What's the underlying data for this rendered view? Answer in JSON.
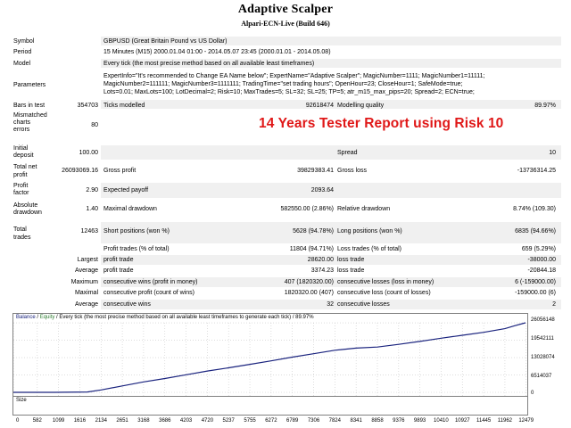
{
  "header": {
    "title": "Adaptive Scalper",
    "subtitle": "Alpari-ECN-Live (Build 646)"
  },
  "overlay_text": "14 Years Tester Report using Risk 10",
  "colors": {
    "overlay": "#e01818",
    "balance_line": "#1a237e",
    "equity": "#2e7d32",
    "shade": "#f0f0f0"
  },
  "report": {
    "symbol": {
      "label": "Symbol",
      "value": "GBPUSD (Great Britain Pound vs US Dollar)"
    },
    "period": {
      "label": "Period",
      "value": "15 Minutes (M15) 2000.01.04 01:00 - 2014.05.07 23:45 (2000.01.01 - 2014.05.08)"
    },
    "model": {
      "label": "Model",
      "value": "Every tick (the most precise method based on all available least timeframes)"
    },
    "parameters": {
      "label": "Parameters",
      "lines": [
        "ExpertInfo=\"It's recommended to Change EA Name below\"; ExpertName=\"Adaptive Scalper\"; MagicNumber=1111; MagicNumber1=11111;",
        "MagicNumber2=111111; MagicNumber3=1111111; TradingTime=\"set trading hours\"; OpenHour=23; CloseHour=1; SafeMode=true;",
        "Lots=0.01; MaxLots=100; LotDecimal=2; Risk=10; MaxTrades=5; SL=32; SL=25; TP=5; atr_m15_max_pips=20; Spread=2; ECN=true;"
      ]
    },
    "bars": {
      "label": "Bars in test",
      "value": "354703"
    },
    "ticks": {
      "label": "Ticks modelled",
      "value": "92618474"
    },
    "quality": {
      "label": "Modelling quality",
      "value": "89.97%"
    },
    "mismatched": {
      "label_lines": [
        "Mismatched",
        "charts",
        "errors"
      ],
      "value": "80"
    },
    "deposit": {
      "label_lines": [
        "Initial",
        "deposit"
      ],
      "value": "100.00"
    },
    "spread": {
      "label": "Spread",
      "value": "10"
    },
    "net_profit": {
      "label_lines": [
        "Total net",
        "profit"
      ],
      "value": "26093069.16"
    },
    "gross_profit": {
      "label": "Gross profit",
      "value": "39829383.41"
    },
    "gross_loss": {
      "label": "Gross loss",
      "value": "-13736314.25"
    },
    "profit_factor": {
      "label_lines": [
        "Profit",
        "factor"
      ],
      "value": "2.90"
    },
    "expected_payoff": {
      "label": "Expected payoff",
      "value": "2093.64"
    },
    "abs_drawdown": {
      "label_lines": [
        "Absolute",
        "drawdown"
      ],
      "value": "1.40"
    },
    "max_drawdown": {
      "label": "Maximal drawdown",
      "value": "582550.00 (2.86%)"
    },
    "rel_drawdown": {
      "label": "Relative drawdown",
      "value": "8.74% (109.30)"
    },
    "total_trades": {
      "label_lines": [
        "Total",
        "trades"
      ],
      "value": "12463"
    },
    "short_pos": {
      "label": "Short positions (won %)",
      "value": "5628 (94.78%)"
    },
    "long_pos": {
      "label": "Long positions (won %)",
      "value": "6835 (94.66%)"
    },
    "profit_trades": {
      "label": "Profit trades (% of total)",
      "value": "11804 (94.71%)"
    },
    "loss_trades": {
      "label": "Loss trades (% of total)",
      "value": "659 (5.29%)"
    },
    "largest": {
      "prefix": "Largest",
      "p_label": "profit trade",
      "p_value": "28620.00",
      "l_label": "loss trade",
      "l_value": "-38000.00"
    },
    "average": {
      "prefix": "Average",
      "p_label": "profit trade",
      "p_value": "3374.23",
      "l_label": "loss trade",
      "l_value": "-20844.18"
    },
    "maximum": {
      "prefix": "Maximum",
      "p_label": "consecutive wins (profit in money)",
      "p_value": "407 (1820320.00)",
      "l_label": "consecutive losses (loss in money)",
      "l_value": "6 (-159000.00)"
    },
    "maximal": {
      "prefix": "Maximal",
      "p_label": "consecutive profit (count of wins)",
      "p_value": "1820320.00 (407)",
      "l_label": "consecutive loss (count of losses)",
      "l_value": "-159000.00 (6)"
    },
    "avg_consec": {
      "prefix": "Average",
      "p_label": "consecutive wins",
      "p_value": "32",
      "l_label": "consecutive losses",
      "l_value": "2"
    }
  },
  "chart_data": {
    "type": "line",
    "legend": {
      "balance": "Balance",
      "sep": " / ",
      "equity": "Equity",
      "rest": " / Every tick (the most precise method based on all available least timeframes to generate each tick) / 89.97%"
    },
    "size_label": "Size",
    "y_ticks": [
      "26056148",
      "19542111",
      "13028074",
      "6514037",
      "0"
    ],
    "x_ticks": [
      "0",
      "582",
      "1099",
      "1616",
      "2134",
      "2651",
      "3168",
      "3686",
      "4203",
      "4720",
      "5237",
      "5755",
      "6272",
      "6789",
      "7306",
      "7824",
      "8341",
      "8858",
      "9376",
      "9893",
      "10410",
      "10927",
      "11445",
      "11962",
      "12479"
    ],
    "ylim": [
      0,
      26093069
    ],
    "xlim": [
      0,
      12463
    ],
    "series": [
      {
        "values_x": [
          0,
          1000,
          1800,
          2134,
          2651,
          3168,
          3686,
          4203,
          4720,
          5237,
          5755,
          6272,
          6789,
          7306,
          7824,
          8341,
          8858,
          9376,
          9893,
          10410,
          10927,
          11445,
          11962,
          12200,
          12463
        ],
        "values_y": [
          100,
          100,
          150000,
          900000,
          2400000,
          3900000,
          5200000,
          6600000,
          8000000,
          9200000,
          10500000,
          11800000,
          13200000,
          14500000,
          15800000,
          16600000,
          17000000,
          18000000,
          19100000,
          20300000,
          21400000,
          22500000,
          23900000,
          25000000,
          26093069
        ]
      }
    ]
  }
}
